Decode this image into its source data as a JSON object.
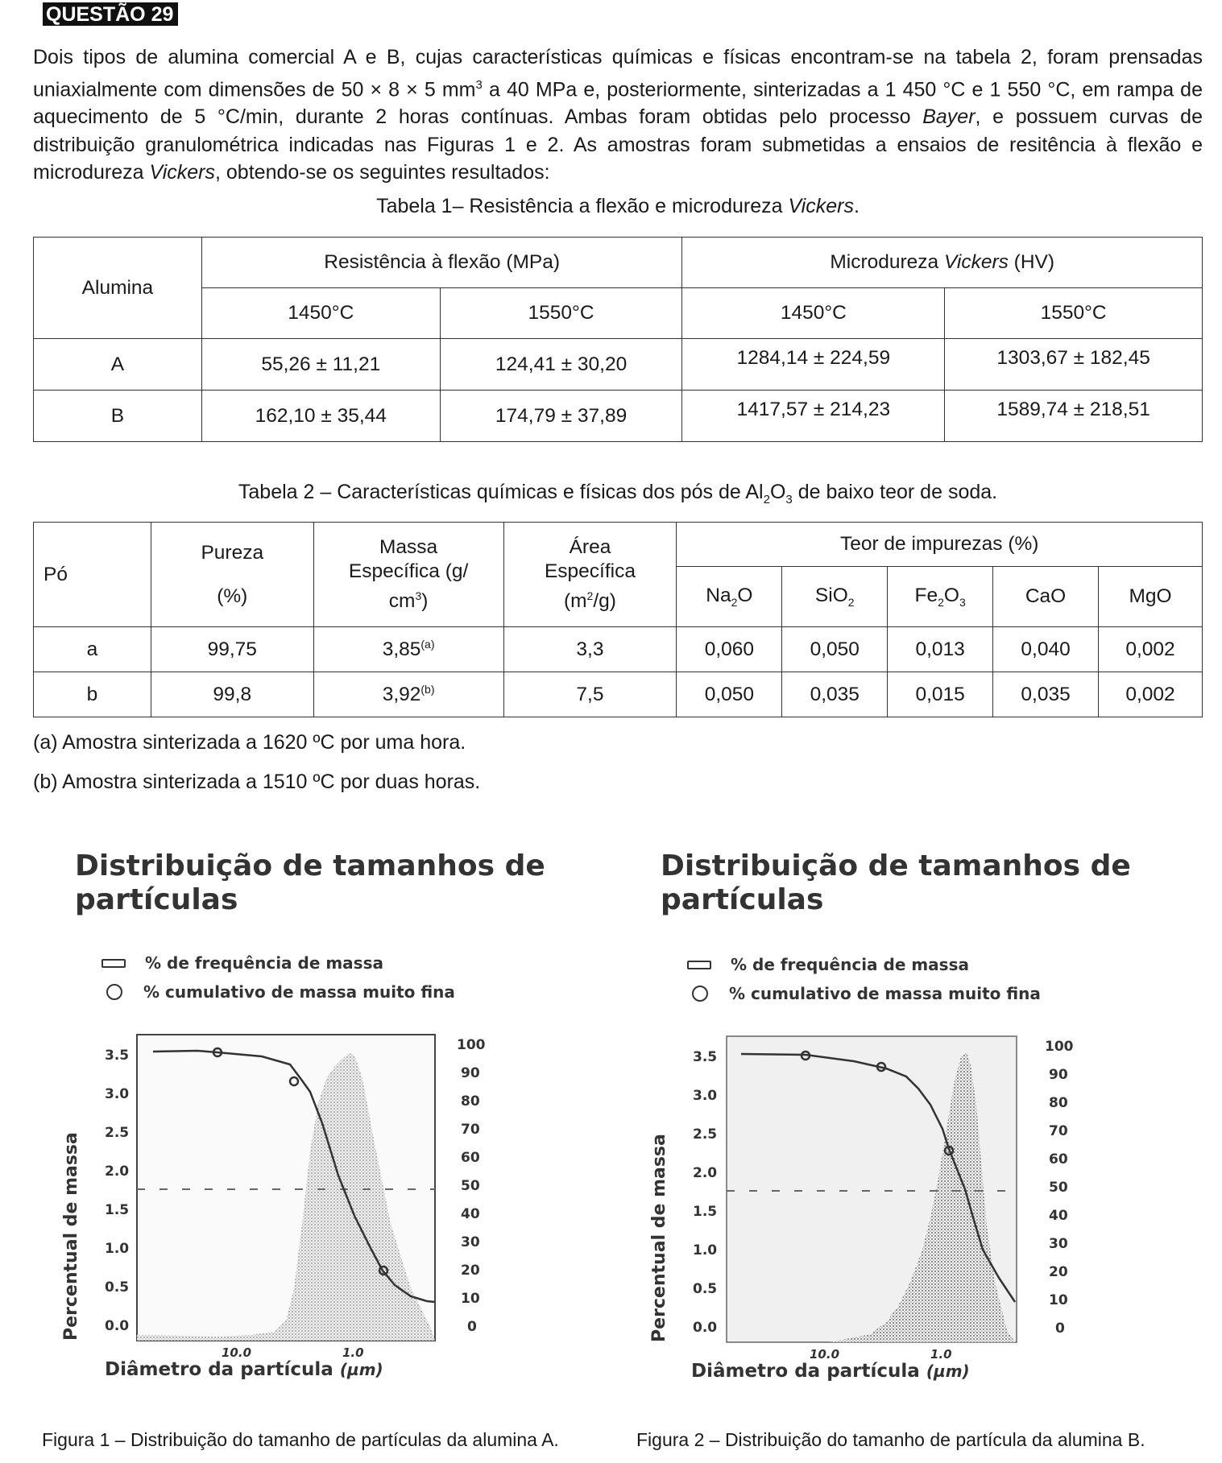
{
  "question_label": "QUESTÃO 29",
  "intro": {
    "s1": "Dois tipos de alumina comercial A e B, cujas características químicas e físicas encontram-se na tabela 2, foram prensadas uniaxialmente com dimensões de 50 × 8 × 5 mm",
    "s2": " a 40 MPa e, posteriormente, sinterizadas a 1 450 °C e 1 550 °C, em rampa de aquecimento de 5 °C/min, durante 2 horas contínuas. Ambas foram obtidas pelo processo ",
    "bayer": "Bayer",
    "s3": ", e possuem curvas de distribuição granulométrica indicadas nas Figuras 1 e 2. As amostras foram submetidas a ensaios de resitência à flexão e microdureza ",
    "vickers": "Vickers",
    "s4": ", obtendo-se os seguintes resultados:",
    "sup3": "3"
  },
  "table1": {
    "caption_a": "Tabela 1– Resistência a flexão e microdureza ",
    "caption_b": "Vickers",
    "caption_c": ".",
    "h_alumina": "Alumina",
    "h_res": "Resistência à flexão (MPa)",
    "h_micro_a": "Microdureza ",
    "h_micro_b": "Vickers",
    "h_micro_c": " (HV)",
    "t1450": "1450°C",
    "t1550": "1550°C",
    "rows": [
      {
        "name": "A",
        "r1450": "55,26 ± 11,21",
        "r1550": "124,41 ± 30,20",
        "m1450": "1284,14 ± 224,59",
        "m1550": "1303,67 ± 182,45"
      },
      {
        "name": "B",
        "r1450": "162,10 ± 35,44",
        "r1550": "174,79 ± 37,89",
        "m1450": "1417,57 ± 214,23",
        "m1550": "1589,74 ± 218,51"
      }
    ]
  },
  "table2": {
    "caption_a": "Tabela 2 – Características químicas e físicas dos pós de Al",
    "sub2": "2",
    "o": "O",
    "sub3": "3",
    "caption_b": " de baixo teor de soda.",
    "h_po": "Pó",
    "h_pureza": "Pureza",
    "h_pureza_unit": "(%)",
    "h_massa_1": "Massa",
    "h_massa_2": "Específica (g/",
    "h_massa_3": "cm",
    "h_massa_4": ")",
    "h_area_1": "Área",
    "h_area_2": "Específica",
    "h_area_3": "(m",
    "h_area_4": "/g)",
    "h_sup3": "3",
    "h_sup2": "2",
    "h_teor": "Teor de impurezas (%)",
    "imp": {
      "na": "Na",
      "na_sub": "2",
      "na_o": "O",
      "si": "SiO",
      "si_sub": "2",
      "fe": "Fe",
      "fe_sub": "2",
      "fe_o": "O",
      "fe_sub2": "3",
      "ca": "CaO",
      "mg": "MgO"
    },
    "rows": [
      {
        "po": "a",
        "pureza": "99,75",
        "massa": "3,85",
        "massa_note": "(a)",
        "area": "3,3",
        "na2o": "0,060",
        "sio2": "0,050",
        "fe2o3": "0,013",
        "cao": "0,040",
        "mgo": "0,002"
      },
      {
        "po": "b",
        "pureza": "99,8",
        "massa": "3,92",
        "massa_note": "(b)",
        "area": "7,5",
        "na2o": "0,050",
        "sio2": "0,035",
        "fe2o3": "0,015",
        "cao": "0,035",
        "mgo": "0,002"
      }
    ]
  },
  "notes": {
    "a": "(a)  Amostra sinterizada a 1620 ºC por uma hora.",
    "b": "(b)  Amostra sinterizada a 1510 ºC por duas horas."
  },
  "figures": [
    {
      "title_1": "Distribuição de tamanhos de",
      "title_2": "partículas",
      "legend_freq": "% de frequência de massa",
      "legend_cum": "% cumulativo de massa muito fina",
      "ylabel": "Percentual de massa",
      "xlabel": "Diâmetro  da  partícula",
      "xunit": "(µm)",
      "left_ticks": [
        "3.5",
        "3.0",
        "2.5",
        "2.0",
        "1.5",
        "1.0",
        "0.5",
        "0.0"
      ],
      "right_ticks": [
        "100",
        "90",
        "80",
        "70",
        "60",
        "50",
        "40",
        "30",
        "20",
        "10",
        "0"
      ],
      "x_ticks": [
        "10.0",
        "1.0"
      ],
      "caption": "Figura 1 – Distribuição do tamanho de partículas da alumina A."
    },
    {
      "title_1": "Distribuição de tamanhos de",
      "title_2": "partículas",
      "legend_freq": "% de frequência de massa",
      "legend_cum": "% cumulativo de massa muito fina",
      "ylabel": "Percentual de massa",
      "xlabel": "Diâmetro  da  partícula",
      "xunit": "(µm)",
      "left_ticks": [
        "3.5",
        "3.0",
        "2.5",
        "2.0",
        "1.5",
        "1.0",
        "0.5",
        "0.0"
      ],
      "right_ticks": [
        "100",
        "90",
        "80",
        "70",
        "60",
        "50",
        "40",
        "30",
        "20",
        "10",
        "0"
      ],
      "x_ticks": [
        "10.0",
        "1.0"
      ],
      "caption": "Figura 2 – Distribuição do tamanho de partícula da alumina B."
    }
  ]
}
